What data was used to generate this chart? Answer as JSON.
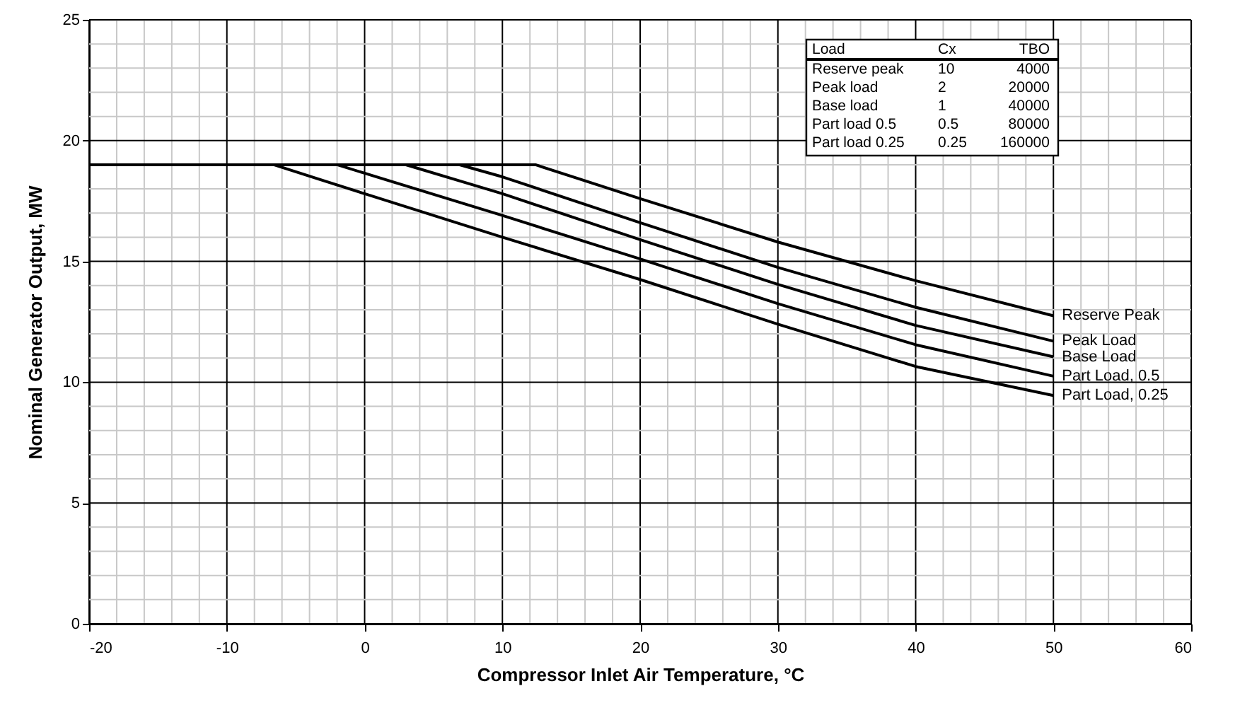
{
  "chart_data": {
    "type": "line",
    "xlabel": "Compressor Inlet Air Temperature, °C",
    "ylabel": "Nominal Generator Output, MW",
    "xlim": [
      -20,
      60
    ],
    "ylim": [
      0,
      25
    ],
    "xticks": [
      -20,
      {
        "value": -18,
        "label": null
      },
      {
        "value": -16,
        "label": null
      },
      {
        "value": -14,
        "label": null
      },
      {
        "value": -12,
        "label": null
      },
      -10,
      {
        "value": -8,
        "label": null
      },
      {
        "value": -6,
        "label": null
      },
      {
        "value": -4,
        "label": null
      },
      {
        "value": -2,
        "label": null
      },
      0,
      {
        "value": 2,
        "label": null
      },
      {
        "value": 4,
        "label": null
      },
      {
        "value": 6,
        "label": null
      },
      {
        "value": 8,
        "label": null
      },
      10,
      {
        "value": 12,
        "label": null
      },
      {
        "value": 14,
        "label": null
      },
      {
        "value": 16,
        "label": null
      },
      {
        "value": 18,
        "label": null
      },
      20,
      {
        "value": 22,
        "label": null
      },
      {
        "value": 24,
        "label": null
      },
      {
        "value": 26,
        "label": null
      },
      {
        "value": 28,
        "label": null
      },
      30,
      {
        "value": 32,
        "label": null
      },
      {
        "value": 34,
        "label": null
      },
      {
        "value": 36,
        "label": null
      },
      {
        "value": 38,
        "label": null
      },
      40,
      {
        "value": 42,
        "label": null
      },
      {
        "value": 44,
        "label": null
      },
      {
        "value": 46,
        "label": null
      },
      {
        "value": 48,
        "label": null
      },
      50,
      {
        "value": 52,
        "label": null
      },
      {
        "value": 54,
        "label": null
      },
      {
        "value": 56,
        "label": null
      },
      {
        "value": 58,
        "label": null
      },
      60
    ],
    "yticks": [
      0,
      {
        "value": 1,
        "label": null
      },
      {
        "value": 2,
        "label": null
      },
      {
        "value": 3,
        "label": null
      },
      {
        "value": 4,
        "label": null
      },
      5,
      {
        "value": 6,
        "label": null
      },
      {
        "value": 7,
        "label": null
      },
      {
        "value": 8,
        "label": null
      },
      {
        "value": 9,
        "label": null
      },
      10,
      {
        "value": 11,
        "label": null
      },
      {
        "value": 12,
        "label": null
      },
      {
        "value": 13,
        "label": null
      },
      {
        "value": 14,
        "label": null
      },
      15,
      {
        "value": 16,
        "label": null
      },
      {
        "value": 17,
        "label": null
      },
      {
        "value": 18,
        "label": null
      },
      {
        "value": 19,
        "label": null
      },
      20,
      {
        "value": 21,
        "label": null
      },
      {
        "value": 22,
        "label": null
      },
      {
        "value": 23,
        "label": null
      },
      {
        "value": 24,
        "label": null
      },
      25
    ],
    "grid": true,
    "marker": "none",
    "line_style": "solid",
    "series": [
      {
        "name": "Reserve Peak",
        "color": "#000000",
        "x": [
          -20,
          12.4,
          20,
          30,
          40,
          50
        ],
        "values": [
          19,
          19,
          17.6,
          15.8,
          14.2,
          12.75
        ]
      },
      {
        "name": "Peak Load",
        "color": "#000000",
        "x": [
          -20,
          6.9,
          10,
          20,
          30,
          40,
          50
        ],
        "values": [
          19,
          19,
          18.5,
          16.6,
          14.75,
          13.1,
          11.7
        ]
      },
      {
        "name": "Base Load",
        "color": "#000000",
        "x": [
          -20,
          3,
          10,
          20,
          30,
          40,
          50
        ],
        "values": [
          19,
          19,
          17.8,
          15.9,
          14.05,
          12.35,
          11.05
        ]
      },
      {
        "name": "Part Load, 0.5",
        "color": "#000000",
        "x": [
          -20,
          -2,
          0,
          10,
          20,
          30,
          40,
          50
        ],
        "values": [
          19,
          19,
          18.65,
          16.9,
          15.1,
          13.25,
          11.55,
          10.25
        ]
      },
      {
        "name": "Part Load, 0.25",
        "color": "#000000",
        "x": [
          -20,
          -6.6,
          0,
          10,
          20,
          30,
          40,
          50
        ],
        "values": [
          19,
          19,
          17.8,
          16.0,
          14.25,
          12.4,
          10.65,
          9.45
        ]
      }
    ],
    "annotations": [
      "Load",
      "Cx",
      "TBO",
      "Reserve peak",
      "10",
      "4000",
      "Peak load",
      "2",
      "20000",
      "Base load",
      "1",
      "40000",
      "Part load 0.5",
      "0.5",
      "80000",
      "Part load 0.25",
      "0.25",
      "160000"
    ]
  }
}
